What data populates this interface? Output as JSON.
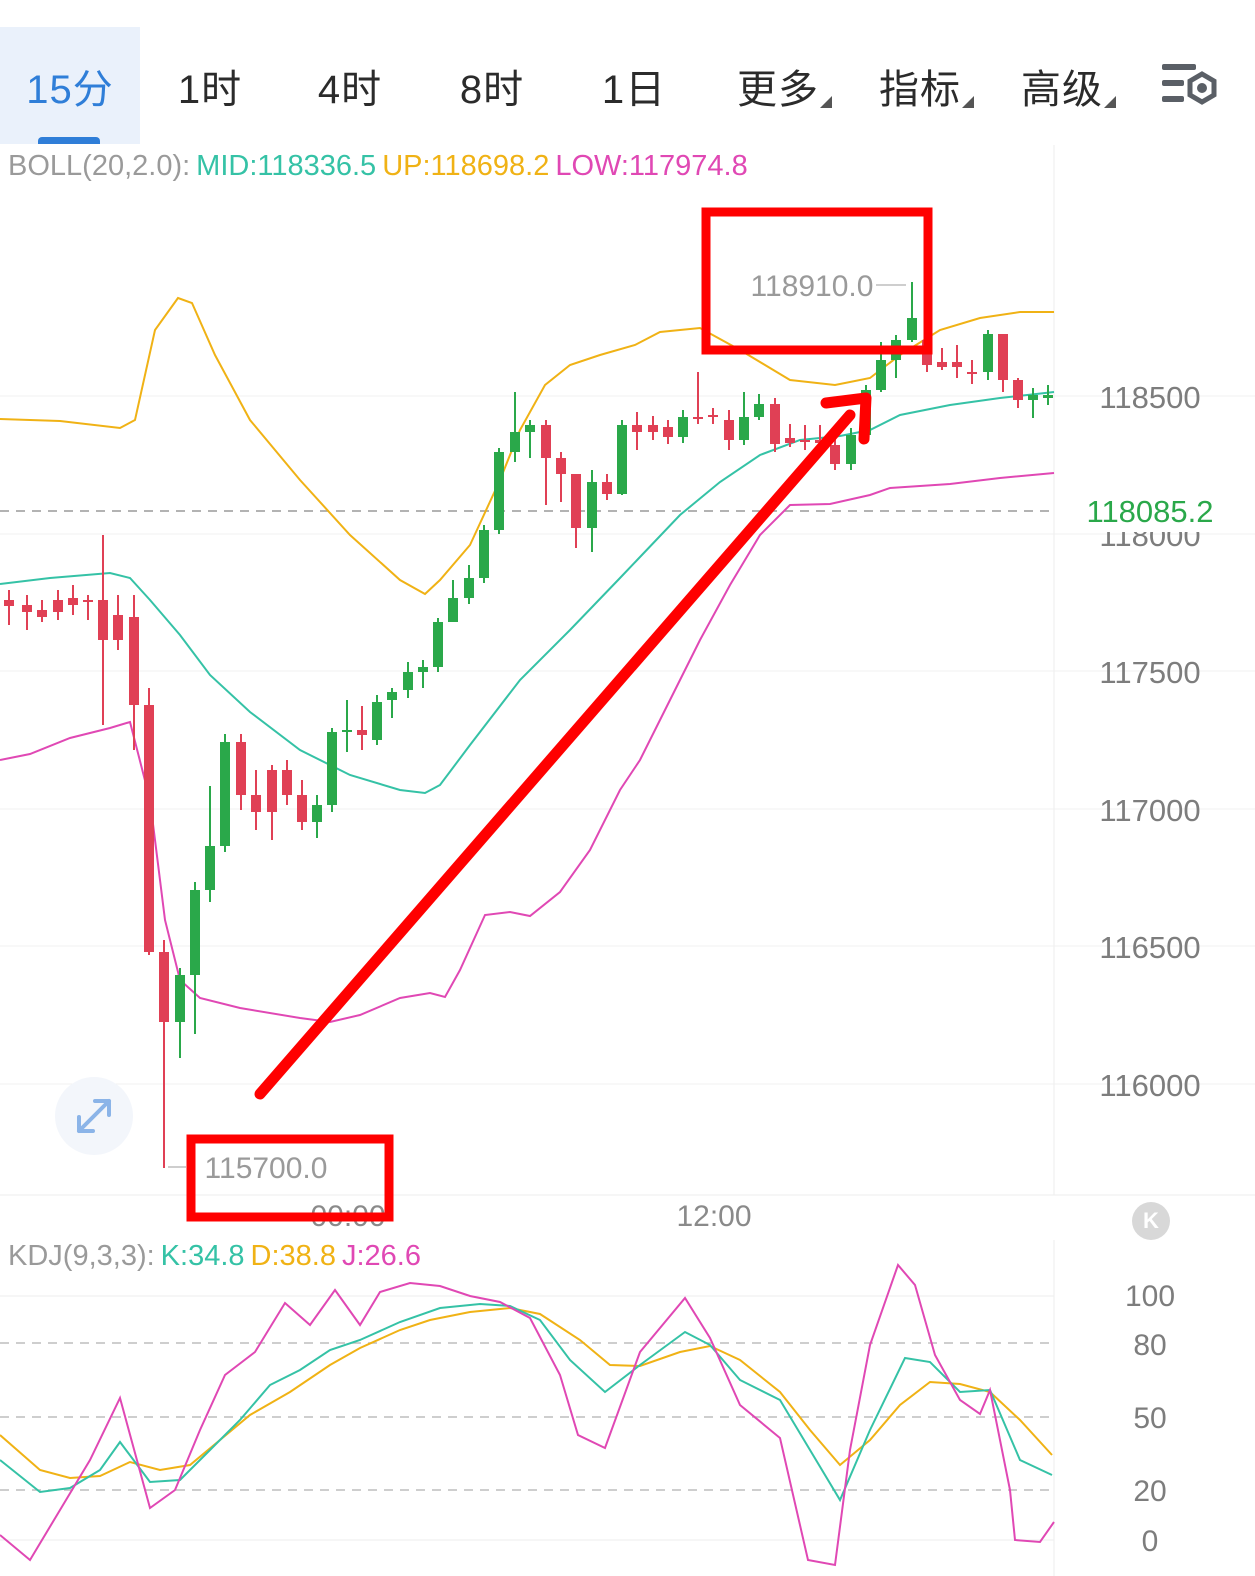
{
  "tabs": [
    {
      "label": "15分",
      "active": true
    },
    {
      "label": "1时"
    },
    {
      "label": "4时"
    },
    {
      "label": "8时"
    },
    {
      "label": "1日"
    },
    {
      "label": "更多",
      "dropdown": true
    },
    {
      "label": "指标",
      "dropdown": true
    },
    {
      "label": "高级",
      "dropdown": true
    }
  ],
  "settings_icon": "chart-settings-icon",
  "boll": {
    "name": "BOLL(20,2.0):",
    "mid": "MID:118336.5",
    "up": "UP:118698.2",
    "low": "LOW:117974.8",
    "colors": {
      "mid": "#35c2a6",
      "up": "#f0b215",
      "low": "#e048b4"
    }
  },
  "price_axis": [
    "118500",
    "118000",
    "117500",
    "117000",
    "116500",
    "116000"
  ],
  "current_price": "118085.2",
  "high_label": "118910.0",
  "low_label": "115700.0",
  "time_axis": [
    "00:00",
    "12:00"
  ],
  "kdj": {
    "name": "KDJ(9,3,3):",
    "k": "K:34.8",
    "d": "D:38.8",
    "j": "J:26.6",
    "axis": [
      "100",
      "80",
      "50",
      "20",
      "0"
    ]
  },
  "expand_icon": "expand-icon",
  "scroll_latest_label": "K",
  "colors": {
    "up": "#2aa84a",
    "down": "#e04055",
    "accent": "#2f7ed8",
    "annotation": "#ff0000"
  }
}
